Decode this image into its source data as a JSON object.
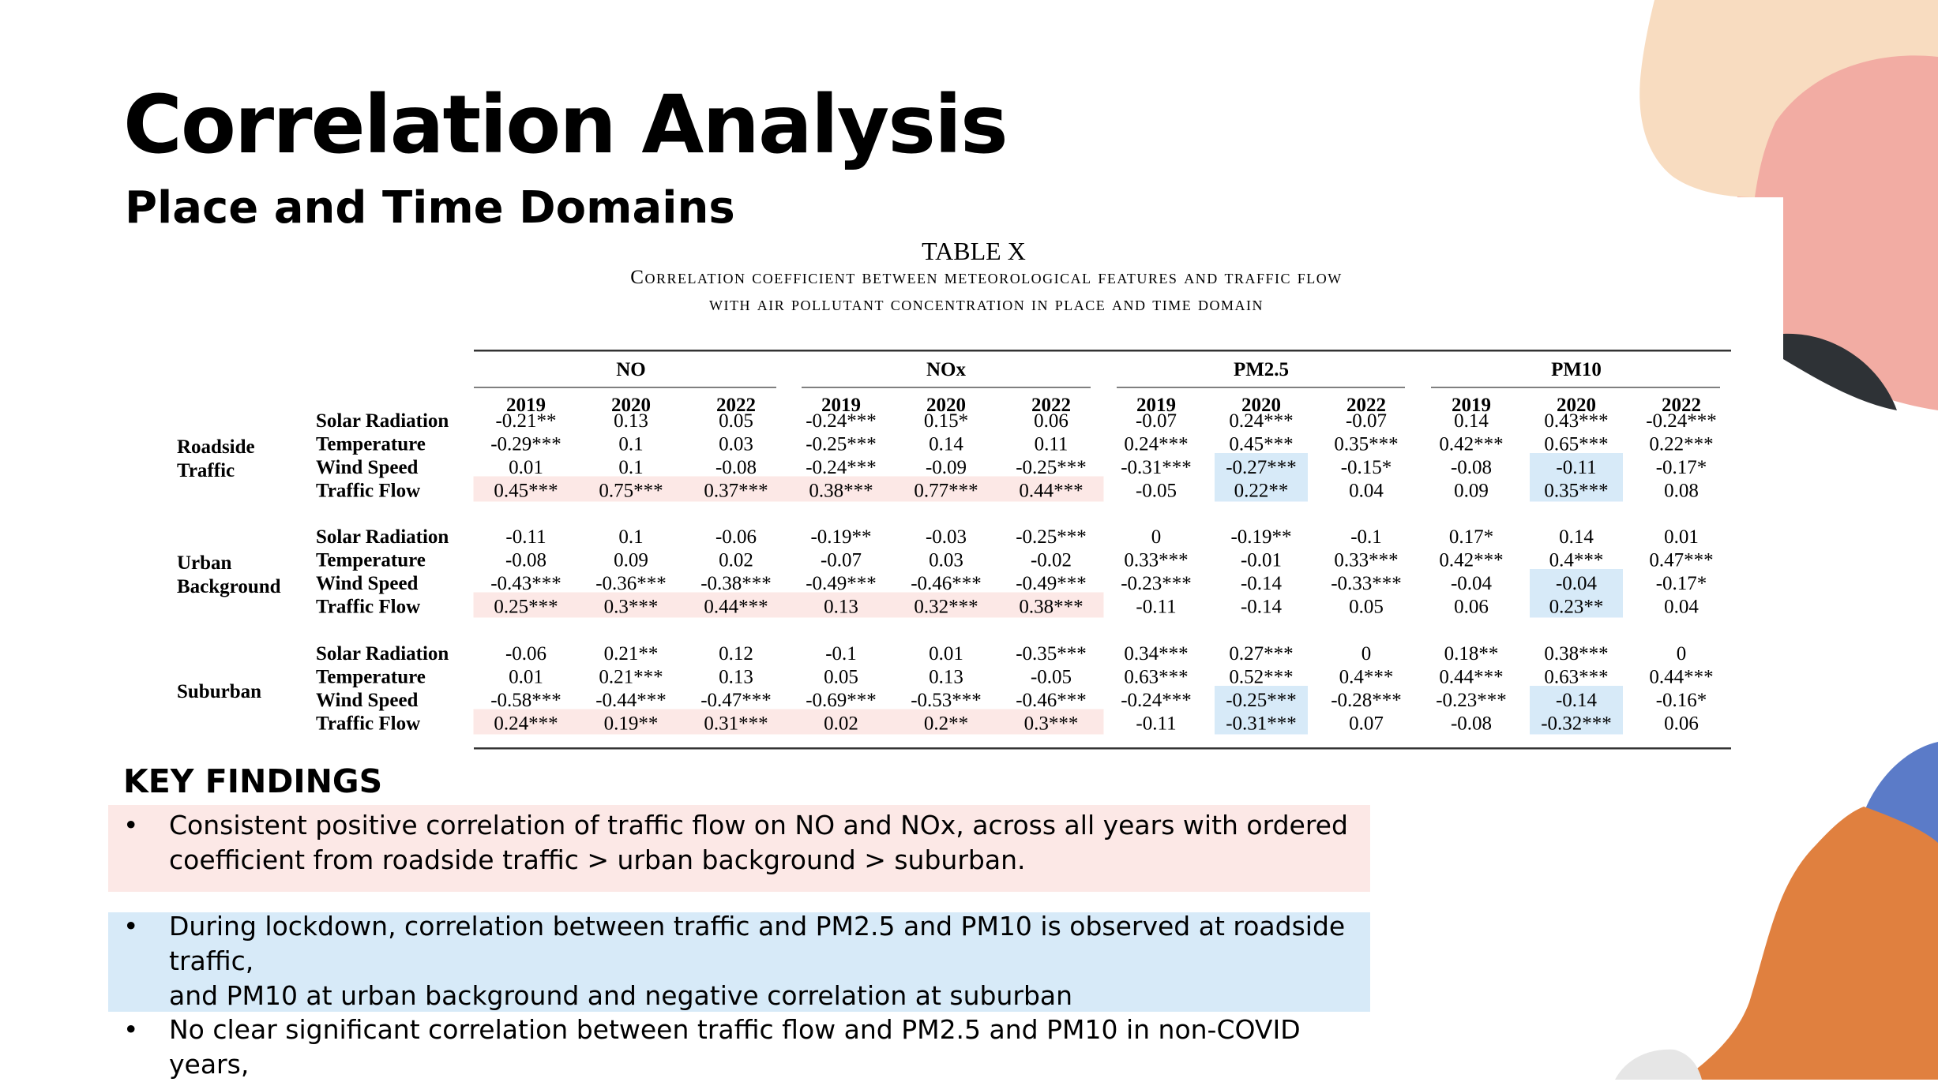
{
  "slide": {
    "title": "Correlation Analysis",
    "subtitle": "Place and Time Domains"
  },
  "table": {
    "caption": "TABLE X",
    "description_line1": "Correlation coefficient between meteorological features and traffic flow",
    "description_line2": "with air pollutant concentration in place and time domain",
    "pollutants": [
      "NO",
      "NOx",
      "PM2.5",
      "PM10"
    ],
    "years": [
      "2019",
      "2020",
      "2022"
    ],
    "features": [
      "Solar Radiation",
      "Temperature",
      "Wind Speed",
      "Traffic Flow"
    ],
    "groups": [
      {
        "label_lines": [
          "Roadside",
          "Traffic"
        ],
        "rows": [
          [
            "-0.21**",
            "0.13",
            "0.05",
            "-0.24***",
            "0.15*",
            "0.06",
            "-0.07",
            "0.24***",
            "-0.07",
            "0.14",
            "0.43***",
            "-0.24***"
          ],
          [
            "-0.29***",
            "0.1",
            "0.03",
            "-0.25***",
            "0.14",
            "0.11",
            "0.24***",
            "0.45***",
            "0.35***",
            "0.42***",
            "0.65***",
            "0.22***"
          ],
          [
            "0.01",
            "0.1",
            "-0.08",
            "-0.24***",
            "-0.09",
            "-0.25***",
            "-0.31***",
            "-0.27***",
            "-0.15*",
            "-0.08",
            "-0.11",
            "-0.17*"
          ],
          [
            "0.45***",
            "0.75***",
            "0.37***",
            "0.38***",
            "0.77***",
            "0.44***",
            "-0.05",
            "0.22**",
            "0.04",
            "0.09",
            "0.35***",
            "0.08"
          ]
        ]
      },
      {
        "label_lines": [
          "Urban",
          "Background"
        ],
        "rows": [
          [
            "-0.11",
            "0.1",
            "-0.06",
            "-0.19**",
            "-0.03",
            "-0.25***",
            "0",
            "-0.19**",
            "-0.1",
            "0.17*",
            "0.14",
            "0.01"
          ],
          [
            "-0.08",
            "0.09",
            "0.02",
            "-0.07",
            "0.03",
            "-0.02",
            "0.33***",
            "-0.01",
            "0.33***",
            "0.42***",
            "0.4***",
            "0.47***"
          ],
          [
            "-0.43***",
            "-0.36***",
            "-0.38***",
            "-0.49***",
            "-0.46***",
            "-0.49***",
            "-0.23***",
            "-0.14",
            "-0.33***",
            "-0.04",
            "-0.04",
            "-0.17*"
          ],
          [
            "0.25***",
            "0.3***",
            "0.44***",
            "0.13",
            "0.32***",
            "0.38***",
            "-0.11",
            "-0.14",
            "0.05",
            "0.06",
            "0.23**",
            "0.04"
          ]
        ]
      },
      {
        "label_lines": [
          "Suburban"
        ],
        "rows": [
          [
            "-0.06",
            "0.21**",
            "0.12",
            "-0.1",
            "0.01",
            "-0.35***",
            "0.34***",
            "0.27***",
            "0",
            "0.18**",
            "0.38***",
            "0"
          ],
          [
            "0.01",
            "0.21***",
            "0.13",
            "0.05",
            "0.13",
            "-0.05",
            "0.63***",
            "0.52***",
            "0.4***",
            "0.44***",
            "0.63***",
            "0.44***"
          ],
          [
            "-0.58***",
            "-0.44***",
            "-0.47***",
            "-0.69***",
            "-0.53***",
            "-0.46***",
            "-0.24***",
            "-0.25***",
            "-0.28***",
            "-0.23***",
            "-0.14",
            "-0.16*"
          ],
          [
            "0.24***",
            "0.19**",
            "0.31***",
            "0.02",
            "0.2**",
            "0.3***",
            "-0.11",
            "-0.31***",
            "0.07",
            "-0.08",
            "-0.32***",
            "0.06"
          ]
        ]
      }
    ]
  },
  "key_findings": {
    "heading": "KEY FINDINGS",
    "bullet_symbol": "•",
    "items": [
      {
        "line1": "Consistent positive correlation of traffic flow on NO and NOx, across all years with ordered",
        "line2": "coefficient from roadside traffic > urban background > suburban."
      },
      {
        "line1": "During lockdown,  correlation between traffic and PM2.5 and PM10 is observed at roadside traffic,",
        "line2": "and PM10 at urban background and negative correlation at suburban"
      },
      {
        "line1": "No clear significant correlation between traffic flow and PM2.5 and PM10 in non-COVID years,"
      }
    ]
  },
  "colors": {
    "highlight_pink": "#fce8e6",
    "highlight_blue": "#d7eaf8",
    "deco_salmon": "#f2aca3",
    "deco_peach": "#f8dcc0",
    "deco_orange": "#e0803f",
    "deco_blue": "#5b7bc8",
    "deco_dark": "#2e3236",
    "deco_grey": "#e6e6e6"
  }
}
